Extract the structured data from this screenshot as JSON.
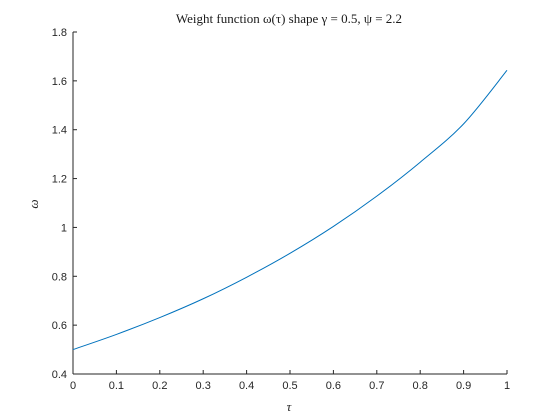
{
  "chart_data": {
    "type": "line",
    "title": "Weight function ω(τ) shape γ = 0.5,  ψ = 2.2",
    "xlabel": "τ",
    "ylabel": "ω",
    "xlim": [
      0,
      1
    ],
    "ylim": [
      0.4,
      1.8
    ],
    "xticks": [
      0,
      0.1,
      0.2,
      0.3,
      0.4,
      0.5,
      0.6,
      0.7,
      0.8,
      0.9,
      1
    ],
    "xtick_labels": [
      "0",
      "0.1",
      "0.2",
      "0.3",
      "0.4",
      "0.5",
      "0.6",
      "0.7",
      "0.8",
      "0.9",
      "1"
    ],
    "yticks": [
      0.4,
      0.6,
      0.8,
      1.0,
      1.2,
      1.4,
      1.6,
      1.8
    ],
    "ytick_labels": [
      "0.4",
      "0.6",
      "0.8",
      "1",
      "1.2",
      "1.4",
      "1.6",
      "1.8"
    ],
    "grid": false,
    "series": [
      {
        "color": "#0072bd",
        "x": [
          0,
          0.1,
          0.2,
          0.3,
          0.4,
          0.5,
          0.6,
          0.7,
          0.8,
          0.9,
          1
        ],
        "y": [
          0.5,
          0.562,
          0.631,
          0.708,
          0.796,
          0.894,
          1.004,
          1.128,
          1.267,
          1.424,
          1.643
        ]
      }
    ]
  }
}
